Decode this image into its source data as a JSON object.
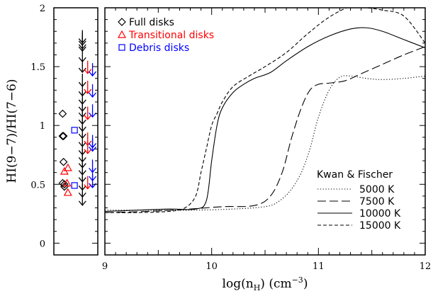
{
  "chart_data": [
    {
      "type": "scatter",
      "ylabel": "HI(9−7)/HI(7−6)",
      "ylim": [
        -0.1,
        2.0
      ],
      "yticks": [
        "0",
        "0.5",
        "1",
        "1.5",
        "2"
      ],
      "legend_placement": "top-left",
      "series": [
        {
          "name": "Full disks",
          "marker": "diamond",
          "color": "#000000",
          "points": [
            {
              "x": 0.2,
              "y": 1.1
            },
            {
              "x": 0.2,
              "y": 0.91
            },
            {
              "x": 0.22,
              "y": 0.91
            },
            {
              "x": 0.22,
              "y": 0.69
            },
            {
              "x": 0.2,
              "y": 0.51
            },
            {
              "x": 0.24,
              "y": 0.5
            },
            {
              "x": 0.24,
              "y": 0.48
            }
          ]
        },
        {
          "name": "Transitional disks",
          "marker": "triangle",
          "color": "#ff0000",
          "points": [
            {
              "x": 0.24,
              "y": 0.61
            },
            {
              "x": 0.32,
              "y": 0.64
            },
            {
              "x": 0.3,
              "y": 0.51
            },
            {
              "x": 0.32,
              "y": 0.43
            }
          ]
        },
        {
          "name": "Debris disks",
          "marker": "square",
          "color": "#0000ff",
          "points": [
            {
              "x": 0.47,
              "y": 0.96
            },
            {
              "x": 0.47,
              "y": 0.49
            }
          ]
        },
        {
          "name": "Full disks upper limits",
          "marker": "down-arrow",
          "color": "#000000",
          "points": [
            {
              "x": 0.65,
              "y": 1.75
            },
            {
              "x": 0.65,
              "y": 1.73
            },
            {
              "x": 0.65,
              "y": 1.7
            },
            {
              "x": 0.65,
              "y": 1.68
            },
            {
              "x": 0.65,
              "y": 1.59
            },
            {
              "x": 0.65,
              "y": 1.5
            },
            {
              "x": 0.65,
              "y": 1.38
            },
            {
              "x": 0.65,
              "y": 1.3
            },
            {
              "x": 0.65,
              "y": 1.23
            },
            {
              "x": 0.65,
              "y": 1.17
            },
            {
              "x": 0.65,
              "y": 1.12
            },
            {
              "x": 0.65,
              "y": 1.06
            },
            {
              "x": 0.65,
              "y": 1.0
            },
            {
              "x": 0.65,
              "y": 0.94
            },
            {
              "x": 0.65,
              "y": 0.87
            },
            {
              "x": 0.65,
              "y": 0.8
            },
            {
              "x": 0.65,
              "y": 0.74
            },
            {
              "x": 0.65,
              "y": 0.69
            },
            {
              "x": 0.65,
              "y": 0.63
            },
            {
              "x": 0.65,
              "y": 0.57
            },
            {
              "x": 0.65,
              "y": 0.5
            },
            {
              "x": 0.65,
              "y": 0.44
            },
            {
              "x": 0.65,
              "y": 0.37
            }
          ]
        },
        {
          "name": "Transitional disks upper limits",
          "marker": "down-arrow",
          "color": "#ff0000",
          "points": [
            {
              "x": 0.77,
              "y": 1.49
            },
            {
              "x": 0.77,
              "y": 1.32
            },
            {
              "x": 0.77,
              "y": 1.1
            },
            {
              "x": 0.77,
              "y": 0.88
            },
            {
              "x": 0.77,
              "y": 0.81
            },
            {
              "x": 0.77,
              "y": 0.51
            }
          ]
        },
        {
          "name": "Debris disks upper limits",
          "marker": "down-arrow",
          "color": "#0000ff",
          "points": [
            {
              "x": 0.88,
              "y": 1.47
            },
            {
              "x": 0.88,
              "y": 1.29
            },
            {
              "x": 0.88,
              "y": 1.12
            },
            {
              "x": 0.88,
              "y": 0.86
            },
            {
              "x": 0.88,
              "y": 0.83
            },
            {
              "x": 0.88,
              "y": 0.65
            },
            {
              "x": 0.88,
              "y": 0.58
            },
            {
              "x": 0.88,
              "y": 0.52
            }
          ]
        }
      ]
    },
    {
      "type": "line",
      "xlabel": "log(n",
      "xlabel_sub": "H",
      "xlabel_tail": ")  (cm",
      "xlabel_sup": "−3",
      "xlabel_end": ")",
      "xlim": [
        9,
        12
      ],
      "ylim": [
        -0.1,
        2.0
      ],
      "xticks": [
        "9",
        "10",
        "11",
        "12"
      ],
      "legend_title": "Kwan & Fischer",
      "legend_placement": "bottom-right",
      "series": [
        {
          "name": "5000 K",
          "dash": "dotted",
          "x": [
            9.0,
            9.4,
            9.8,
            10.2,
            10.5,
            10.62,
            10.74,
            10.84,
            10.92,
            11.0,
            11.1,
            11.2,
            11.3,
            11.45,
            11.6,
            11.8,
            12.0
          ],
          "y": [
            0.28,
            0.28,
            0.28,
            0.29,
            0.31,
            0.35,
            0.45,
            0.6,
            0.8,
            1.07,
            1.3,
            1.41,
            1.42,
            1.4,
            1.39,
            1.4,
            1.42
          ]
        },
        {
          "name": "7500 K",
          "dash": "long-dash",
          "x": [
            9.0,
            9.4,
            9.8,
            10.1,
            10.4,
            10.55,
            10.66,
            10.75,
            10.84,
            10.92,
            11.0,
            11.1,
            11.25,
            11.4,
            11.6,
            11.8,
            12.0
          ],
          "y": [
            0.26,
            0.27,
            0.29,
            0.31,
            0.32,
            0.4,
            0.6,
            0.9,
            1.15,
            1.3,
            1.35,
            1.36,
            1.38,
            1.44,
            1.52,
            1.6,
            1.67
          ]
        },
        {
          "name": "10000 K",
          "dash": "solid",
          "x": [
            9.0,
            9.3,
            9.6,
            9.85,
            9.95,
            10.0,
            10.05,
            10.1,
            10.2,
            10.3,
            10.4,
            10.55,
            10.7,
            10.9,
            11.1,
            11.3,
            11.45,
            11.6,
            11.8,
            12.0
          ],
          "y": [
            0.27,
            0.28,
            0.29,
            0.29,
            0.36,
            0.7,
            1.0,
            1.15,
            1.28,
            1.35,
            1.4,
            1.45,
            1.55,
            1.67,
            1.76,
            1.82,
            1.83,
            1.8,
            1.73,
            1.66
          ]
        },
        {
          "name": "15000 K",
          "dash": "short-dash",
          "x": [
            9.0,
            9.3,
            9.6,
            9.75,
            9.85,
            9.9,
            9.95,
            10.0,
            10.05,
            10.1,
            10.2,
            10.35,
            10.5,
            10.7,
            10.9,
            11.1,
            11.3,
            11.45,
            11.6,
            11.8,
            12.0
          ],
          "y": [
            0.26,
            0.26,
            0.27,
            0.3,
            0.4,
            0.6,
            0.8,
            1.0,
            1.1,
            1.2,
            1.33,
            1.42,
            1.5,
            1.62,
            1.78,
            1.92,
            2.01,
            2.0,
            1.98,
            1.93,
            1.7
          ]
        }
      ]
    }
  ]
}
